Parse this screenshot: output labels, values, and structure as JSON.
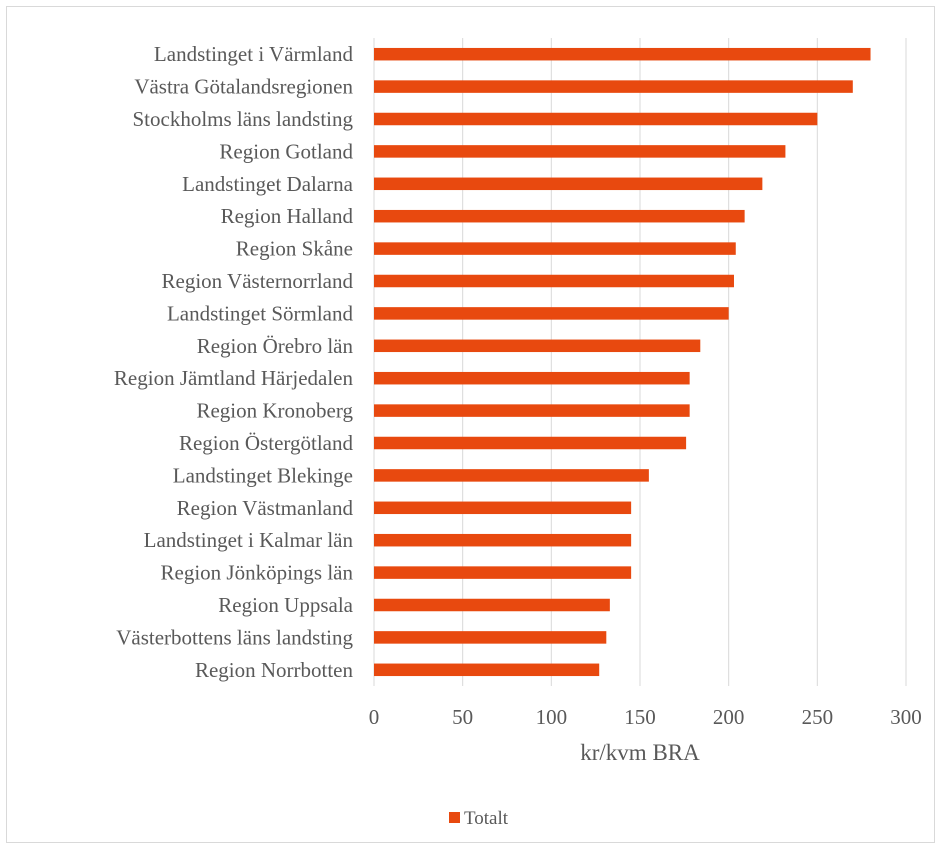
{
  "chart_data": {
    "type": "bar",
    "orientation": "horizontal",
    "categories": [
      "Landstinget i Värmland",
      "Västra Götalandsregionen",
      "Stockholms läns landsting",
      "Region Gotland",
      "Landstinget Dalarna",
      "Region Halland",
      "Region Skåne",
      "Region Västernorrland",
      "Landstinget Sörmland",
      "Region Örebro län",
      "Region Jämtland Härjedalen",
      "Region Kronoberg",
      "Region Östergötland",
      "Landstinget Blekinge",
      "Region Västmanland",
      "Landstinget i Kalmar län",
      "Region Jönköpings län",
      "Region Uppsala",
      "Västerbottens läns landsting",
      "Region Norrbotten"
    ],
    "series": [
      {
        "name": "Totalt",
        "color": "#e8490f",
        "values": [
          280,
          270,
          250,
          232,
          219,
          209,
          204,
          203,
          200,
          184,
          178,
          178,
          176,
          155,
          145,
          145,
          145,
          133,
          131,
          127
        ]
      }
    ],
    "xlabel": "kr/kvm BRA",
    "ylabel": "",
    "xlim": [
      0,
      300
    ],
    "xticks": [
      "0",
      "50",
      "100",
      "150",
      "200",
      "250",
      "300"
    ],
    "grid": "vertical",
    "legend_position": "bottom"
  }
}
